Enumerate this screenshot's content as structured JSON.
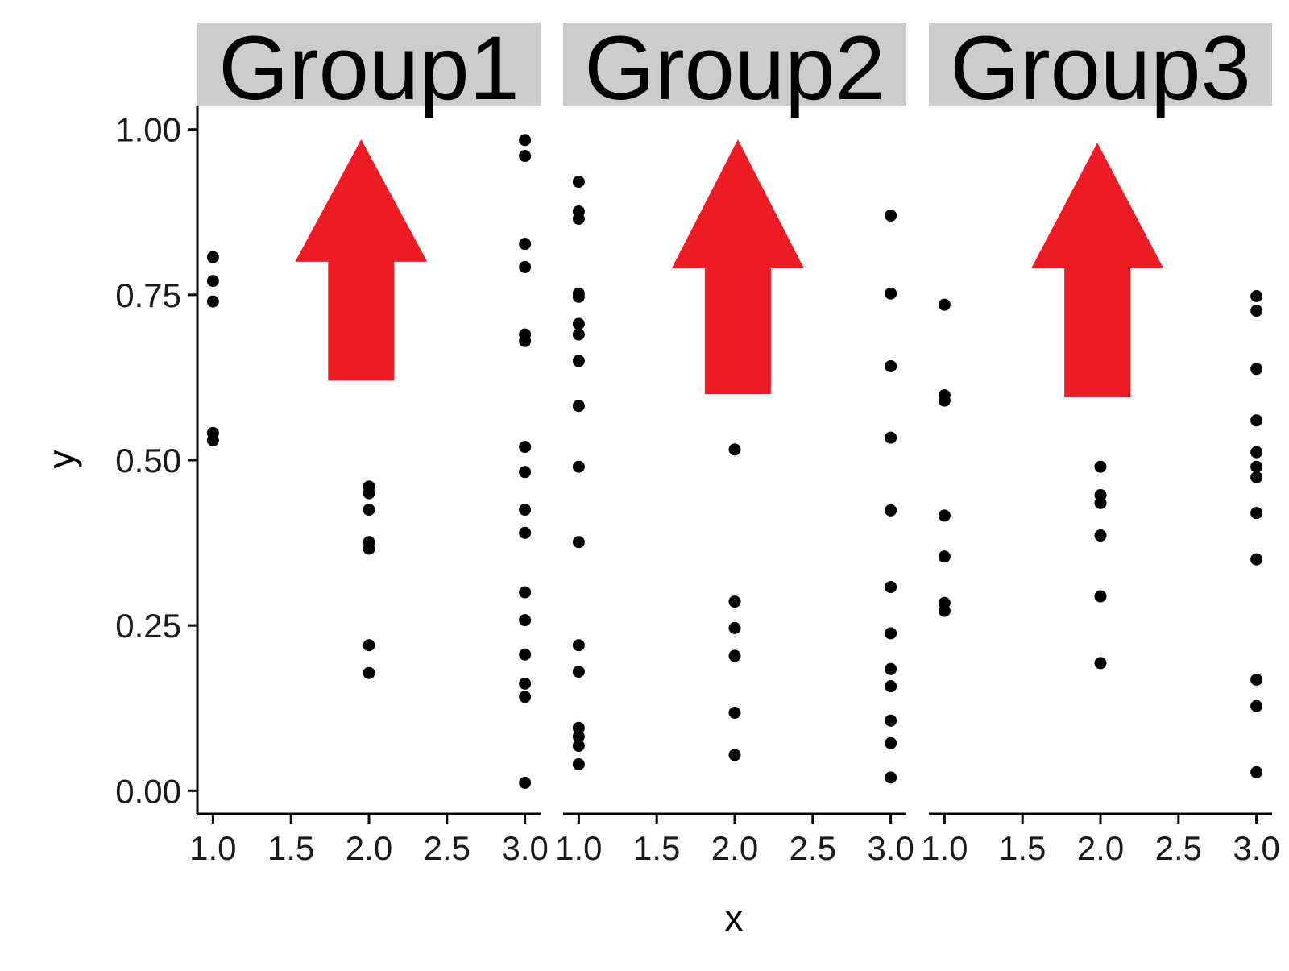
{
  "chart_data": {
    "type": "scatter",
    "xlabel": "x",
    "ylabel": "y",
    "xlim": [
      0.9,
      3.1
    ],
    "ylim": [
      -0.035,
      1.035
    ],
    "x_ticks": [
      1.0,
      1.5,
      2.0,
      2.5,
      3.0
    ],
    "x_tick_labels": [
      "1.0",
      "1.5",
      "2.0",
      "2.5",
      "3.0"
    ],
    "y_ticks": [
      0.0,
      0.25,
      0.5,
      0.75,
      1.0
    ],
    "y_tick_labels": [
      "0.00",
      "0.25",
      "0.50",
      "0.75",
      "1.00"
    ],
    "grid": false,
    "legend": "none",
    "point_color": "#000000",
    "strip_fill": "#cccccc",
    "arrow_color": "#ed1c24",
    "facets": [
      {
        "strip_label": "Group1",
        "points": {
          "x1": [
            0.807,
            0.771,
            0.74,
            0.541,
            0.53
          ],
          "x2": [
            0.46,
            0.45,
            0.425,
            0.376,
            0.366,
            0.22,
            0.178
          ],
          "x3": [
            0.984,
            0.96,
            0.827,
            0.792,
            0.69,
            0.68,
            0.52,
            0.482,
            0.425,
            0.39,
            0.3,
            0.258,
            0.206,
            0.162,
            0.142,
            0.012
          ]
        },
        "arrow": {
          "x": 1.95,
          "tip_y": 0.985,
          "head_base_y": 0.8,
          "stem_bottom_y": 0.62
        }
      },
      {
        "strip_label": "Group2",
        "points": {
          "x1": [
            0.921,
            0.876,
            0.865,
            0.752,
            0.747,
            0.706,
            0.69,
            0.65,
            0.582,
            0.49,
            0.376,
            0.22,
            0.18,
            0.095,
            0.082,
            0.068,
            0.04
          ],
          "x2": [
            0.516,
            0.286,
            0.246,
            0.204,
            0.118,
            0.054
          ],
          "x3": [
            0.87,
            0.752,
            0.642,
            0.534,
            0.424,
            0.308,
            0.238,
            0.184,
            0.158,
            0.106,
            0.072,
            0.02
          ]
        },
        "arrow": {
          "x": 2.02,
          "tip_y": 0.985,
          "head_base_y": 0.79,
          "stem_bottom_y": 0.6
        }
      },
      {
        "strip_label": "Group3",
        "points": {
          "x1": [
            0.735,
            0.598,
            0.59,
            0.416,
            0.354,
            0.284,
            0.272
          ],
          "x2": [
            0.49,
            0.447,
            0.435,
            0.386,
            0.294,
            0.193
          ],
          "x3": [
            0.748,
            0.726,
            0.638,
            0.56,
            0.512,
            0.49,
            0.474,
            0.42,
            0.35,
            0.168,
            0.128,
            0.028
          ]
        },
        "arrow": {
          "x": 1.98,
          "tip_y": 0.98,
          "head_base_y": 0.79,
          "stem_bottom_y": 0.595
        }
      }
    ]
  }
}
